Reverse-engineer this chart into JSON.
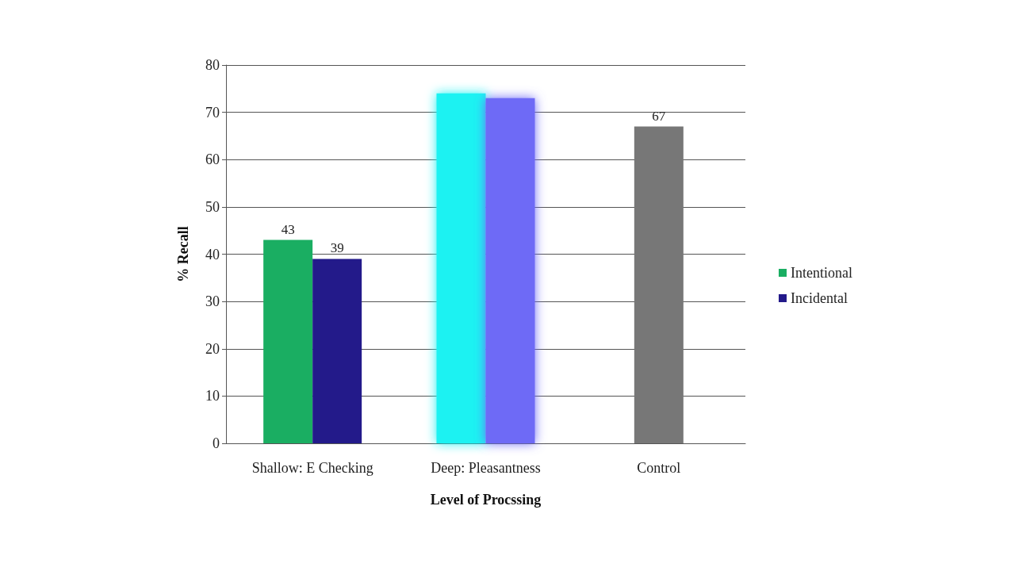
{
  "chart_data": {
    "type": "bar",
    "xlabel": "Level of Procssing",
    "ylabel": "% Recall",
    "categories": [
      "Shallow: E Checking",
      "Deep: Pleasantness",
      "Control"
    ],
    "series": [
      {
        "name": "Intentional",
        "color": "#1aae62",
        "colors": [
          "#1aae62",
          "#1ef2f2",
          null
        ],
        "values": [
          43,
          74,
          null
        ],
        "value_labels": [
          "43",
          null,
          null
        ]
      },
      {
        "name": "Incidental",
        "color": "#231a8a",
        "colors": [
          "#231a8a",
          "#6e6af6",
          null
        ],
        "values": [
          39,
          73,
          null
        ],
        "value_labels": [
          "39",
          null,
          null
        ]
      },
      {
        "color": "#777777",
        "values": [
          null,
          null,
          67
        ],
        "value_labels": [
          null,
          null,
          "67"
        ]
      }
    ],
    "ylim": [
      0,
      80
    ],
    "yticks": [
      0,
      10,
      20,
      30,
      40,
      50,
      60,
      70,
      80
    ],
    "grid": "y",
    "legend": "right"
  }
}
